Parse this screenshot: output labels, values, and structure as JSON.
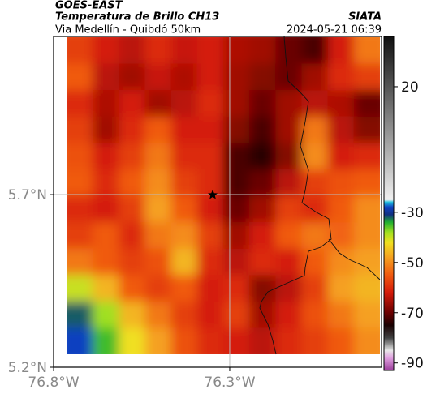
{
  "chart_data": {
    "type": "heatmap",
    "title": "GOES-EAST",
    "subtitle": "Temperatura de Brillo CH13",
    "source": "SIATA",
    "region": "Via Medellín - Quibdó 50km",
    "datetime": "2024-05-21 06:39",
    "xlim": [
      -76.8,
      -75.869
    ],
    "ylim": [
      5.2,
      6.158
    ],
    "xticks": [
      {
        "value": -76.8,
        "label": "76.8°W"
      },
      {
        "value": -76.3,
        "label": "76.3°W"
      }
    ],
    "yticks": [
      {
        "value": 5.7,
        "label": "5.7°N"
      },
      {
        "value": 5.2,
        "label": "5.2°N"
      }
    ],
    "grid": true,
    "clim": [
      -93,
      40
    ],
    "cticks": [
      20,
      -30,
      -50,
      -70,
      -90
    ],
    "colormap": [
      [
        -93,
        "#9b3d9b"
      ],
      [
        -88,
        "#e0a0e0"
      ],
      [
        -85,
        "#e8e8e8"
      ],
      [
        -80,
        "#404040"
      ],
      [
        -75,
        "#1a0000"
      ],
      [
        -70,
        "#6b0000"
      ],
      [
        -62,
        "#d41a0a"
      ],
      [
        -55,
        "#f05a10"
      ],
      [
        -48,
        "#f5a020"
      ],
      [
        -42,
        "#f0e020"
      ],
      [
        -38,
        "#a0e020"
      ],
      [
        -34,
        "#20b030"
      ],
      [
        -31,
        "#103080"
      ],
      [
        -28,
        "#1040c0"
      ],
      [
        -26,
        "#20c0e0"
      ],
      [
        -25,
        "#f0f0f0"
      ],
      [
        40,
        "#101010"
      ]
    ],
    "values": [
      [
        -58,
        -62,
        -64,
        -60,
        -63,
        -62,
        -65,
        -66,
        -70,
        -72,
        -62,
        -52
      ],
      [
        -55,
        -64,
        -66,
        -63,
        -65,
        -62,
        -66,
        -68,
        -70,
        -66,
        -60,
        -58
      ],
      [
        -60,
        -65,
        -62,
        -66,
        -64,
        -60,
        -66,
        -70,
        -66,
        -64,
        -65,
        -70
      ],
      [
        -58,
        -66,
        -60,
        -55,
        -62,
        -62,
        -68,
        -72,
        -66,
        -52,
        -64,
        -68
      ],
      [
        -56,
        -62,
        -58,
        -52,
        -60,
        -60,
        -72,
        -74,
        -68,
        -50,
        -62,
        -60
      ],
      [
        -55,
        -60,
        -55,
        -50,
        -58,
        -60,
        -72,
        -70,
        -64,
        -58,
        -56,
        -55
      ],
      [
        -60,
        -62,
        -58,
        -48,
        -55,
        -62,
        -70,
        -66,
        -58,
        -60,
        -55,
        -50
      ],
      [
        -58,
        -55,
        -60,
        -52,
        -50,
        -58,
        -66,
        -62,
        -55,
        -52,
        -54,
        -50
      ],
      [
        -52,
        -55,
        -58,
        -56,
        -46,
        -60,
        -64,
        -60,
        -62,
        -55,
        -50,
        -48
      ],
      [
        -40,
        -46,
        -55,
        -58,
        -55,
        -62,
        -60,
        -68,
        -64,
        -58,
        -48,
        -46
      ],
      [
        -32,
        -38,
        -46,
        -52,
        -58,
        -62,
        -58,
        -66,
        -62,
        -56,
        -52,
        -48
      ],
      [
        -28,
        -35,
        -42,
        -48,
        -56,
        -60,
        -62,
        -64,
        -60,
        -58,
        -55,
        -50
      ]
    ]
  }
}
